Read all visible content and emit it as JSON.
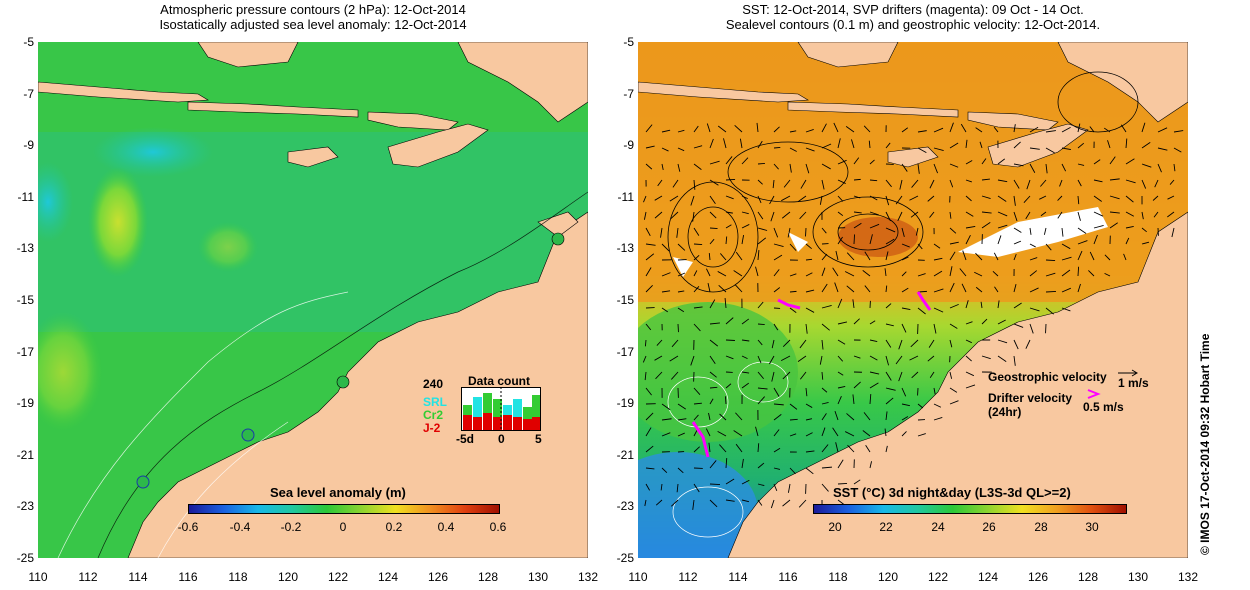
{
  "left_panel": {
    "title_line1": "Atmospheric pressure contours (2 hPa): 12-Oct-2014",
    "title_line2": "Isostatically adjusted sea level anomaly: 12-Oct-2014",
    "colorbar_label": "Sea level anomaly (m)",
    "colorbar_ticks": [
      "-0.6",
      "-0.4",
      "-0.2",
      "0",
      "0.2",
      "0.4",
      "0.6"
    ],
    "data_count": {
      "title": "Data count",
      "max_label": "240",
      "series": [
        "SRL",
        "Cr2",
        "J-2"
      ],
      "series_colors": [
        "#22e3e3",
        "#33cc33",
        "#e00000"
      ],
      "axis_labels": [
        "-5d",
        "0",
        "5"
      ]
    }
  },
  "right_panel": {
    "title_line1": "SST: 12-Oct-2014, SVP drifters (magenta): 09 Oct - 14 Oct.",
    "title_line2": "Sealevel contours (0.1 m) and geostrophic velocity: 12-Oct-2014.",
    "colorbar_label": "SST (°C) 3d night&day (L3S-3d QL>=2)",
    "colorbar_ticks": [
      "20",
      "22",
      "24",
      "26",
      "28",
      "30"
    ],
    "geostrophic_label": "Geostrophic velocity",
    "geostrophic_scale": "1 m/s",
    "drifter_label_line1": "Drifter velocity",
    "drifter_label_line2": "(24hr)",
    "drifter_scale": "0.5 m/s"
  },
  "axes": {
    "y_ticks": [
      "-5",
      "-7",
      "-9",
      "-11",
      "-13",
      "-15",
      "-17",
      "-19",
      "-21",
      "-23",
      "-25"
    ],
    "x_ticks": [
      "110",
      "112",
      "114",
      "116",
      "118",
      "120",
      "122",
      "124",
      "126",
      "128",
      "130",
      "132"
    ]
  },
  "copyright": "© IMOS 17-Oct-2014 09:32 Hobart Time",
  "colors": {
    "land": "#f8c8a0",
    "ocean_green": "#33cc33",
    "magenta": "#ff00ff"
  }
}
